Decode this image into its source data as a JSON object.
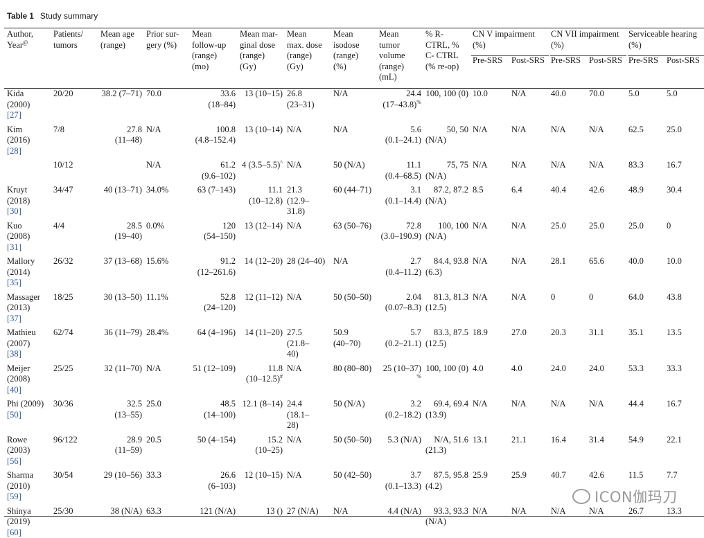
{
  "caption": {
    "label": "Table 1",
    "title": "Study summary"
  },
  "header": {
    "author": [
      "Author,",
      "Year"
    ],
    "author_sup": "@",
    "patients": [
      "Patients/",
      "tumors"
    ],
    "age": [
      "Mean age",
      "(range)"
    ],
    "surgery": [
      "Prior sur-",
      "gery (%)"
    ],
    "followup": [
      "Mean",
      "follow-up",
      "(range)",
      "(mo)"
    ],
    "marginal": [
      "Mean mar-",
      "ginal dose",
      "(range)",
      "(Gy)"
    ],
    "maxdose": [
      "Mean",
      "max. dose",
      "(range)",
      "(Gy)"
    ],
    "isodose": [
      "Mean",
      "isodose",
      "(range)",
      "(%)"
    ],
    "volume": [
      "Mean",
      "tumor",
      "volume",
      "(range)",
      "(mL)"
    ],
    "ctrl": [
      "% R-",
      "CTRL, %",
      "C- CTRL",
      "(% re-op)"
    ],
    "cn5": [
      "CN V impairment",
      "(%)"
    ],
    "cn7": [
      "CN VII impairment",
      "(%)"
    ],
    "hearing": [
      "Serviceable hearing",
      "(%)"
    ],
    "pre": "Pre-SRS",
    "post": "Post-SRS"
  },
  "rows": [
    {
      "author": [
        "Kida",
        "(2000)"
      ],
      "ref": "[27]",
      "patients": "20/20",
      "age": [
        "38.2 (7–71)"
      ],
      "surgery": "70.0",
      "followup": [
        "33.6",
        "(18–84)"
      ],
      "marginal": [
        "13 (10–15)"
      ],
      "maxdose": [
        "26.8",
        "(23–31)"
      ],
      "isodose": [
        "N/A"
      ],
      "volume": [
        "24.4",
        "(17–43.8)"
      ],
      "volume_sup": "%",
      "ctrl": [
        "100, 100 (0)"
      ],
      "cn5_pre": "10.0",
      "cn5_post": "N/A",
      "cn7_pre": "40.0",
      "cn7_post": "70.0",
      "hear_pre": "5.0",
      "hear_post": "5.0"
    },
    {
      "author": [
        "Kim",
        "(2016)"
      ],
      "ref": "[28]",
      "patients": "7/8",
      "age": [
        "27.8",
        "(11–48)"
      ],
      "surgery": "N/A",
      "followup": [
        "100.8",
        "(4.8–152.4)"
      ],
      "marginal": [
        "13 (10–14)"
      ],
      "maxdose": [
        "N/A"
      ],
      "isodose": [
        "N/A"
      ],
      "volume": [
        "5.6",
        "(0.1–24.1)"
      ],
      "ctrl": [
        "50, 50",
        "(N/A)"
      ],
      "cn5_pre": "N/A",
      "cn5_post": "N/A",
      "cn7_pre": "N/A",
      "cn7_post": "N/A",
      "hear_pre": "62.5",
      "hear_post": "25.0"
    },
    {
      "author": [],
      "ref": "",
      "patients": "10/12",
      "age": [],
      "surgery": "N/A",
      "followup": [
        "61.2",
        "(9.6–102)"
      ],
      "marginal": [
        "4 (3.5–5.5)"
      ],
      "marginal_sup": "^",
      "maxdose": [
        "N/A"
      ],
      "isodose": [
        "50 (N/A)"
      ],
      "volume": [
        "11.1",
        "(0.4–68.5)"
      ],
      "ctrl": [
        "75, 75",
        "(N/A)"
      ],
      "cn5_pre": "N/A",
      "cn5_post": "N/A",
      "cn7_pre": "N/A",
      "cn7_post": "N/A",
      "hear_pre": "83.3",
      "hear_post": "16.7"
    },
    {
      "author": [
        "Kruyt",
        "(2018)"
      ],
      "ref": "[30]",
      "patients": "34/47",
      "age": [
        "40 (13–71)"
      ],
      "surgery": "34.0%",
      "followup": [
        "63 (7–143)"
      ],
      "marginal": [
        "11.1",
        "(10–12.8)"
      ],
      "maxdose": [
        "21.3",
        "(12.9–",
        "31.8)"
      ],
      "isodose": [
        "60 (44–71)"
      ],
      "volume": [
        "3.1",
        "(0.1–14.4)"
      ],
      "ctrl": [
        "87.2, 87.2",
        "(N/A)"
      ],
      "cn5_pre": "8.5",
      "cn5_post": "6.4",
      "cn7_pre": "40.4",
      "cn7_post": "42.6",
      "hear_pre": "48.9",
      "hear_post": "30.4"
    },
    {
      "author": [
        "Kuo",
        "(2008)"
      ],
      "ref": "[31]",
      "patients": "4/4",
      "age": [
        "28.5",
        "(19–40)"
      ],
      "surgery": "0.0%",
      "followup": [
        "120",
        "(54–150)"
      ],
      "marginal": [
        "13 (12–14)"
      ],
      "maxdose": [
        "N/A"
      ],
      "isodose": [
        "63 (50–76)"
      ],
      "volume": [
        "72.8",
        "(3.0–190.9)"
      ],
      "ctrl": [
        "100, 100",
        "(N/A)"
      ],
      "cn5_pre": "N/A",
      "cn5_post": "N/A",
      "cn7_pre": "25.0",
      "cn7_post": "25.0",
      "hear_pre": "25.0",
      "hear_post": "0"
    },
    {
      "author": [
        "Mallory",
        "(2014)"
      ],
      "ref": "[35]",
      "patients": "26/32",
      "age": [
        "37 (13–68)"
      ],
      "surgery": "15.6%",
      "followup": [
        "91.2",
        "(12–261.6)"
      ],
      "marginal": [
        "14 (12–20)"
      ],
      "maxdose": [
        "28 (24–40)"
      ],
      "isodose": [
        "N/A"
      ],
      "volume": [
        "2.7",
        "(0.4–11.2)"
      ],
      "ctrl": [
        "84.4, 93.8",
        "(6.3)"
      ],
      "cn5_pre": "N/A",
      "cn5_post": "N/A",
      "cn7_pre": "28.1",
      "cn7_post": "65.6",
      "hear_pre": "40.0",
      "hear_post": "10.0"
    },
    {
      "author": [
        "Massager",
        "(2013)"
      ],
      "ref": "[37]",
      "patients": "18/25",
      "age": [
        "30 (13–50)"
      ],
      "surgery": "11.1%",
      "followup": [
        "52.8",
        "(24–120)"
      ],
      "marginal": [
        "12 (11–12)"
      ],
      "maxdose": [
        "N/A"
      ],
      "isodose": [
        "50 (50–50)"
      ],
      "volume": [
        "2.04",
        "(0.07–8.3)"
      ],
      "ctrl": [
        "81.3, 81.3",
        "(12.5)"
      ],
      "cn5_pre": "N/A",
      "cn5_post": "N/A",
      "cn7_pre": "0",
      "cn7_post": "0",
      "hear_pre": "64.0",
      "hear_post": "43.8"
    },
    {
      "author": [
        "Mathieu",
        "(2007)"
      ],
      "ref": "[38]",
      "patients": "62/74",
      "age": [
        "36 (11–79)"
      ],
      "surgery": "28.4%",
      "followup": [
        "64 (4–196)"
      ],
      "marginal": [
        "14 (11–20)"
      ],
      "maxdose": [
        "27.5",
        "(21.8–",
        "40)"
      ],
      "isodose": [
        "50.9",
        "(40–70)"
      ],
      "volume": [
        "5.7",
        "(0.2–21.1)"
      ],
      "ctrl": [
        "83.3, 87.5",
        "(12.5)"
      ],
      "cn5_pre": "18.9",
      "cn5_post": "27.0",
      "cn7_pre": "20.3",
      "cn7_post": "31.1",
      "hear_pre": "35.1",
      "hear_post": "13.5"
    },
    {
      "author": [
        "Meijer",
        "(2008)"
      ],
      "ref": "[40]",
      "patients": "25/25",
      "age": [
        "32 (11–70)"
      ],
      "surgery": "N/A",
      "followup": [
        "51 (12–109)"
      ],
      "marginal": [
        "11.8",
        "(10–12.5)"
      ],
      "marginal_sup": "#",
      "maxdose": [
        "N/A"
      ],
      "isodose": [
        "80 (80–80)"
      ],
      "volume": [
        "25 (10–37)"
      ],
      "volume_sup2": "%",
      "ctrl": [
        "100, 100 (0)"
      ],
      "cn5_pre": "4.0",
      "cn5_post": "4.0",
      "cn7_pre": "24.0",
      "cn7_post": "24.0",
      "hear_pre": "53.3",
      "hear_post": "33.3"
    },
    {
      "author": [
        "Phi (2009)"
      ],
      "ref": "[50]",
      "patients": "30/36",
      "age": [
        "32.5",
        "(13–55)"
      ],
      "surgery": "25.0",
      "followup": [
        "48.5",
        "(14–100)"
      ],
      "marginal": [
        "12.1 (8–14)"
      ],
      "maxdose": [
        "24.4",
        "(18.1–",
        "28)"
      ],
      "isodose": [
        "50 (N/A)"
      ],
      "volume": [
        "3.2",
        "(0.2–18.2)"
      ],
      "ctrl": [
        "69.4, 69.4",
        "(13.9)"
      ],
      "cn5_pre": "N/A",
      "cn5_post": "N/A",
      "cn7_pre": "N/A",
      "cn7_post": "N/A",
      "hear_pre": "44.4",
      "hear_post": "16.7"
    },
    {
      "author": [
        "Rowe",
        "(2003)"
      ],
      "ref": "[56]",
      "patients": "96/122",
      "age": [
        "28.9",
        "(11–59)"
      ],
      "surgery": "20.5",
      "followup": [
        "50 (4–154)"
      ],
      "marginal": [
        "15.2",
        "(10–25)"
      ],
      "maxdose": [
        "N/A"
      ],
      "isodose": [
        "50 (50–50)"
      ],
      "volume": [
        "5.3 (N/A)"
      ],
      "ctrl": [
        "N/A, 51.6",
        "(21.3)"
      ],
      "cn5_pre": "13.1",
      "cn5_post": "21.1",
      "cn7_pre": "16.4",
      "cn7_post": "31.4",
      "hear_pre": "54.9",
      "hear_post": "22.1"
    },
    {
      "author": [
        "Sharma",
        "(2010)"
      ],
      "ref": "[59]",
      "patients": "30/54",
      "age": [
        "29 (10–56)"
      ],
      "surgery": "33.3",
      "followup": [
        "26.6",
        "(6–103)"
      ],
      "marginal": [
        "12 (10–15)"
      ],
      "maxdose": [
        "N/A"
      ],
      "isodose": [
        "50 (42–50)"
      ],
      "volume": [
        "3.7",
        "(0.1–13.3)"
      ],
      "ctrl": [
        "87.5, 95.8",
        "(4.2)"
      ],
      "cn5_pre": "25.9",
      "cn5_post": "25.9",
      "cn7_pre": "40.7",
      "cn7_post": "42.6",
      "hear_pre": "11.5",
      "hear_post": "7.7"
    },
    {
      "author": [
        "Shinya",
        "(2019)"
      ],
      "ref": "[60]",
      "patients": "25/30",
      "age": [
        "38 (N/A)"
      ],
      "surgery": "63.3",
      "followup": [
        "121 (N/A)"
      ],
      "marginal": [
        "13 ()"
      ],
      "maxdose": [
        "27 (N/A)"
      ],
      "isodose": [
        "N/A"
      ],
      "volume": [
        "4.4 (N/A)"
      ],
      "ctrl": [
        "93.3, 93.3",
        "(N/A)"
      ],
      "cn5_pre": "N/A",
      "cn5_post": "N/A",
      "cn7_pre": "N/A",
      "cn7_post": "N/A",
      "hear_pre": "26.7",
      "hear_post": "13.3"
    }
  ],
  "watermark": "ICON伽玛刀"
}
